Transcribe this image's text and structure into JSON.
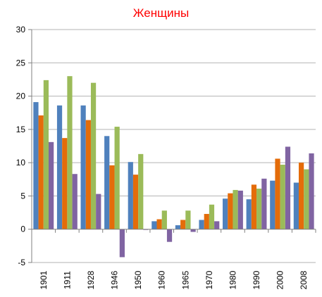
{
  "chart_data": {
    "type": "bar",
    "title": "Женщины",
    "categories": [
      "1901",
      "1911",
      "1928",
      "1946",
      "1950",
      "1960",
      "1965",
      "1970",
      "1980",
      "1990",
      "2000",
      "2008"
    ],
    "series": [
      {
        "color": "#4f81bd",
        "values": [
          19.1,
          18.6,
          18.6,
          14.0,
          10.1,
          1.2,
          0.6,
          1.4,
          4.6,
          4.5,
          7.3,
          7.0
        ]
      },
      {
        "color": "#e46c0a",
        "values": [
          17.1,
          13.7,
          16.4,
          9.6,
          8.2,
          1.5,
          1.4,
          2.3,
          5.4,
          6.7,
          10.6,
          10.0
        ]
      },
      {
        "color": "#9bbb59",
        "values": [
          22.4,
          23.0,
          22.0,
          15.4,
          11.3,
          2.8,
          2.8,
          3.7,
          5.9,
          6.1,
          9.7,
          9.0
        ]
      },
      {
        "color": "#8064a2",
        "values": [
          13.1,
          8.3,
          5.3,
          -4.2,
          -0.1,
          -1.9,
          -0.4,
          1.2,
          5.8,
          7.6,
          12.4,
          11.4
        ]
      }
    ],
    "ylim": [
      -5,
      30
    ],
    "yticks": [
      -5,
      0,
      5,
      10,
      15,
      20,
      25,
      30
    ],
    "grid": true,
    "legend": "none"
  }
}
